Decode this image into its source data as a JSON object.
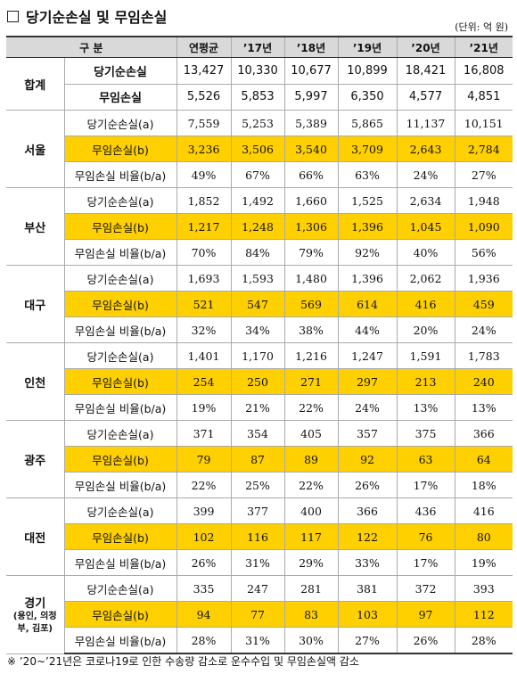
{
  "header": {
    "title": "당기순손실 및 무임손실",
    "unit": "(단위: 억 원)"
  },
  "table": {
    "columns": [
      "구 분",
      "연평균",
      "’17년",
      "’18년",
      "’19년",
      "’20년",
      "’21년"
    ],
    "total": {
      "name": "합계",
      "rows": [
        {
          "label": "당기순손실",
          "values": [
            "13,427",
            "10,330",
            "10,677",
            "10,899",
            "18,421",
            "16,808"
          ]
        },
        {
          "label": "무임손실",
          "values": [
            "5,526",
            "5,853",
            "5,997",
            "6,350",
            "4,577",
            "4,851"
          ]
        }
      ]
    },
    "groups": [
      {
        "name": "서울",
        "rows": [
          {
            "label": "당기순손실(a)",
            "values": [
              "7,559",
              "5,253",
              "5,389",
              "5,865",
              "11,137",
              "10,151"
            ]
          },
          {
            "label": "무임손실(b)",
            "values": [
              "3,236",
              "3,506",
              "3,540",
              "3,709",
              "2,643",
              "2,784"
            ]
          },
          {
            "label": "무임손실 비율(b/a)",
            "values": [
              "49%",
              "67%",
              "66%",
              "63%",
              "24%",
              "27%"
            ]
          }
        ]
      },
      {
        "name": "부산",
        "rows": [
          {
            "label": "당기순손실(a)",
            "values": [
              "1,852",
              "1,492",
              "1,660",
              "1,525",
              "2,634",
              "1,948"
            ]
          },
          {
            "label": "무임손실(b)",
            "values": [
              "1,217",
              "1,248",
              "1,306",
              "1,396",
              "1,045",
              "1,090"
            ]
          },
          {
            "label": "무임손실 비율(b/a)",
            "values": [
              "70%",
              "84%",
              "79%",
              "92%",
              "40%",
              "56%"
            ]
          }
        ]
      },
      {
        "name": "대구",
        "rows": [
          {
            "label": "당기순손실(a)",
            "values": [
              "1,693",
              "1,593",
              "1,480",
              "1,396",
              "2,062",
              "1,936"
            ]
          },
          {
            "label": "무임손실(b)",
            "values": [
              "521",
              "547",
              "569",
              "614",
              "416",
              "459"
            ]
          },
          {
            "label": "무임손실 비율(b/a)",
            "values": [
              "32%",
              "34%",
              "38%",
              "44%",
              "20%",
              "24%"
            ]
          }
        ]
      },
      {
        "name": "인천",
        "rows": [
          {
            "label": "당기순손실(a)",
            "values": [
              "1,401",
              "1,170",
              "1,216",
              "1,247",
              "1,591",
              "1,783"
            ]
          },
          {
            "label": "무임손실(b)",
            "values": [
              "254",
              "250",
              "271",
              "297",
              "213",
              "240"
            ]
          },
          {
            "label": "무임손실 비율(b/a)",
            "values": [
              "19%",
              "21%",
              "22%",
              "24%",
              "13%",
              "13%"
            ]
          }
        ]
      },
      {
        "name": "광주",
        "rows": [
          {
            "label": "당기순손실(a)",
            "values": [
              "371",
              "354",
              "405",
              "357",
              "375",
              "366"
            ]
          },
          {
            "label": "무임손실(b)",
            "values": [
              "79",
              "87",
              "89",
              "92",
              "63",
              "64"
            ]
          },
          {
            "label": "무임손실 비율(b/a)",
            "values": [
              "22%",
              "25%",
              "22%",
              "26%",
              "17%",
              "18%"
            ]
          }
        ]
      },
      {
        "name": "대전",
        "rows": [
          {
            "label": "당기순손실(a)",
            "values": [
              "399",
              "377",
              "400",
              "366",
              "436",
              "416"
            ]
          },
          {
            "label": "무임손실(b)",
            "values": [
              "102",
              "116",
              "117",
              "122",
              "76",
              "80"
            ]
          },
          {
            "label": "무임손실 비율(b/a)",
            "values": [
              "26%",
              "31%",
              "29%",
              "33%",
              "17%",
              "19%"
            ]
          }
        ]
      },
      {
        "name": "경기",
        "note": "(용인, 의정부, 김포)",
        "rows": [
          {
            "label": "당기순손실(a)",
            "values": [
              "335",
              "247",
              "281",
              "381",
              "372",
              "393"
            ]
          },
          {
            "label": "무임손실(b)",
            "values": [
              "94",
              "77",
              "83",
              "103",
              "97",
              "112"
            ]
          },
          {
            "label": "무임손실 비율(b/a)",
            "values": [
              "28%",
              "31%",
              "30%",
              "27%",
              "26%",
              "28%"
            ]
          }
        ]
      }
    ]
  },
  "footnote": "※ ’20~’21년은 코로나19로 인한 수송량 감소로 운수수입 및 무임손실액 감소"
}
